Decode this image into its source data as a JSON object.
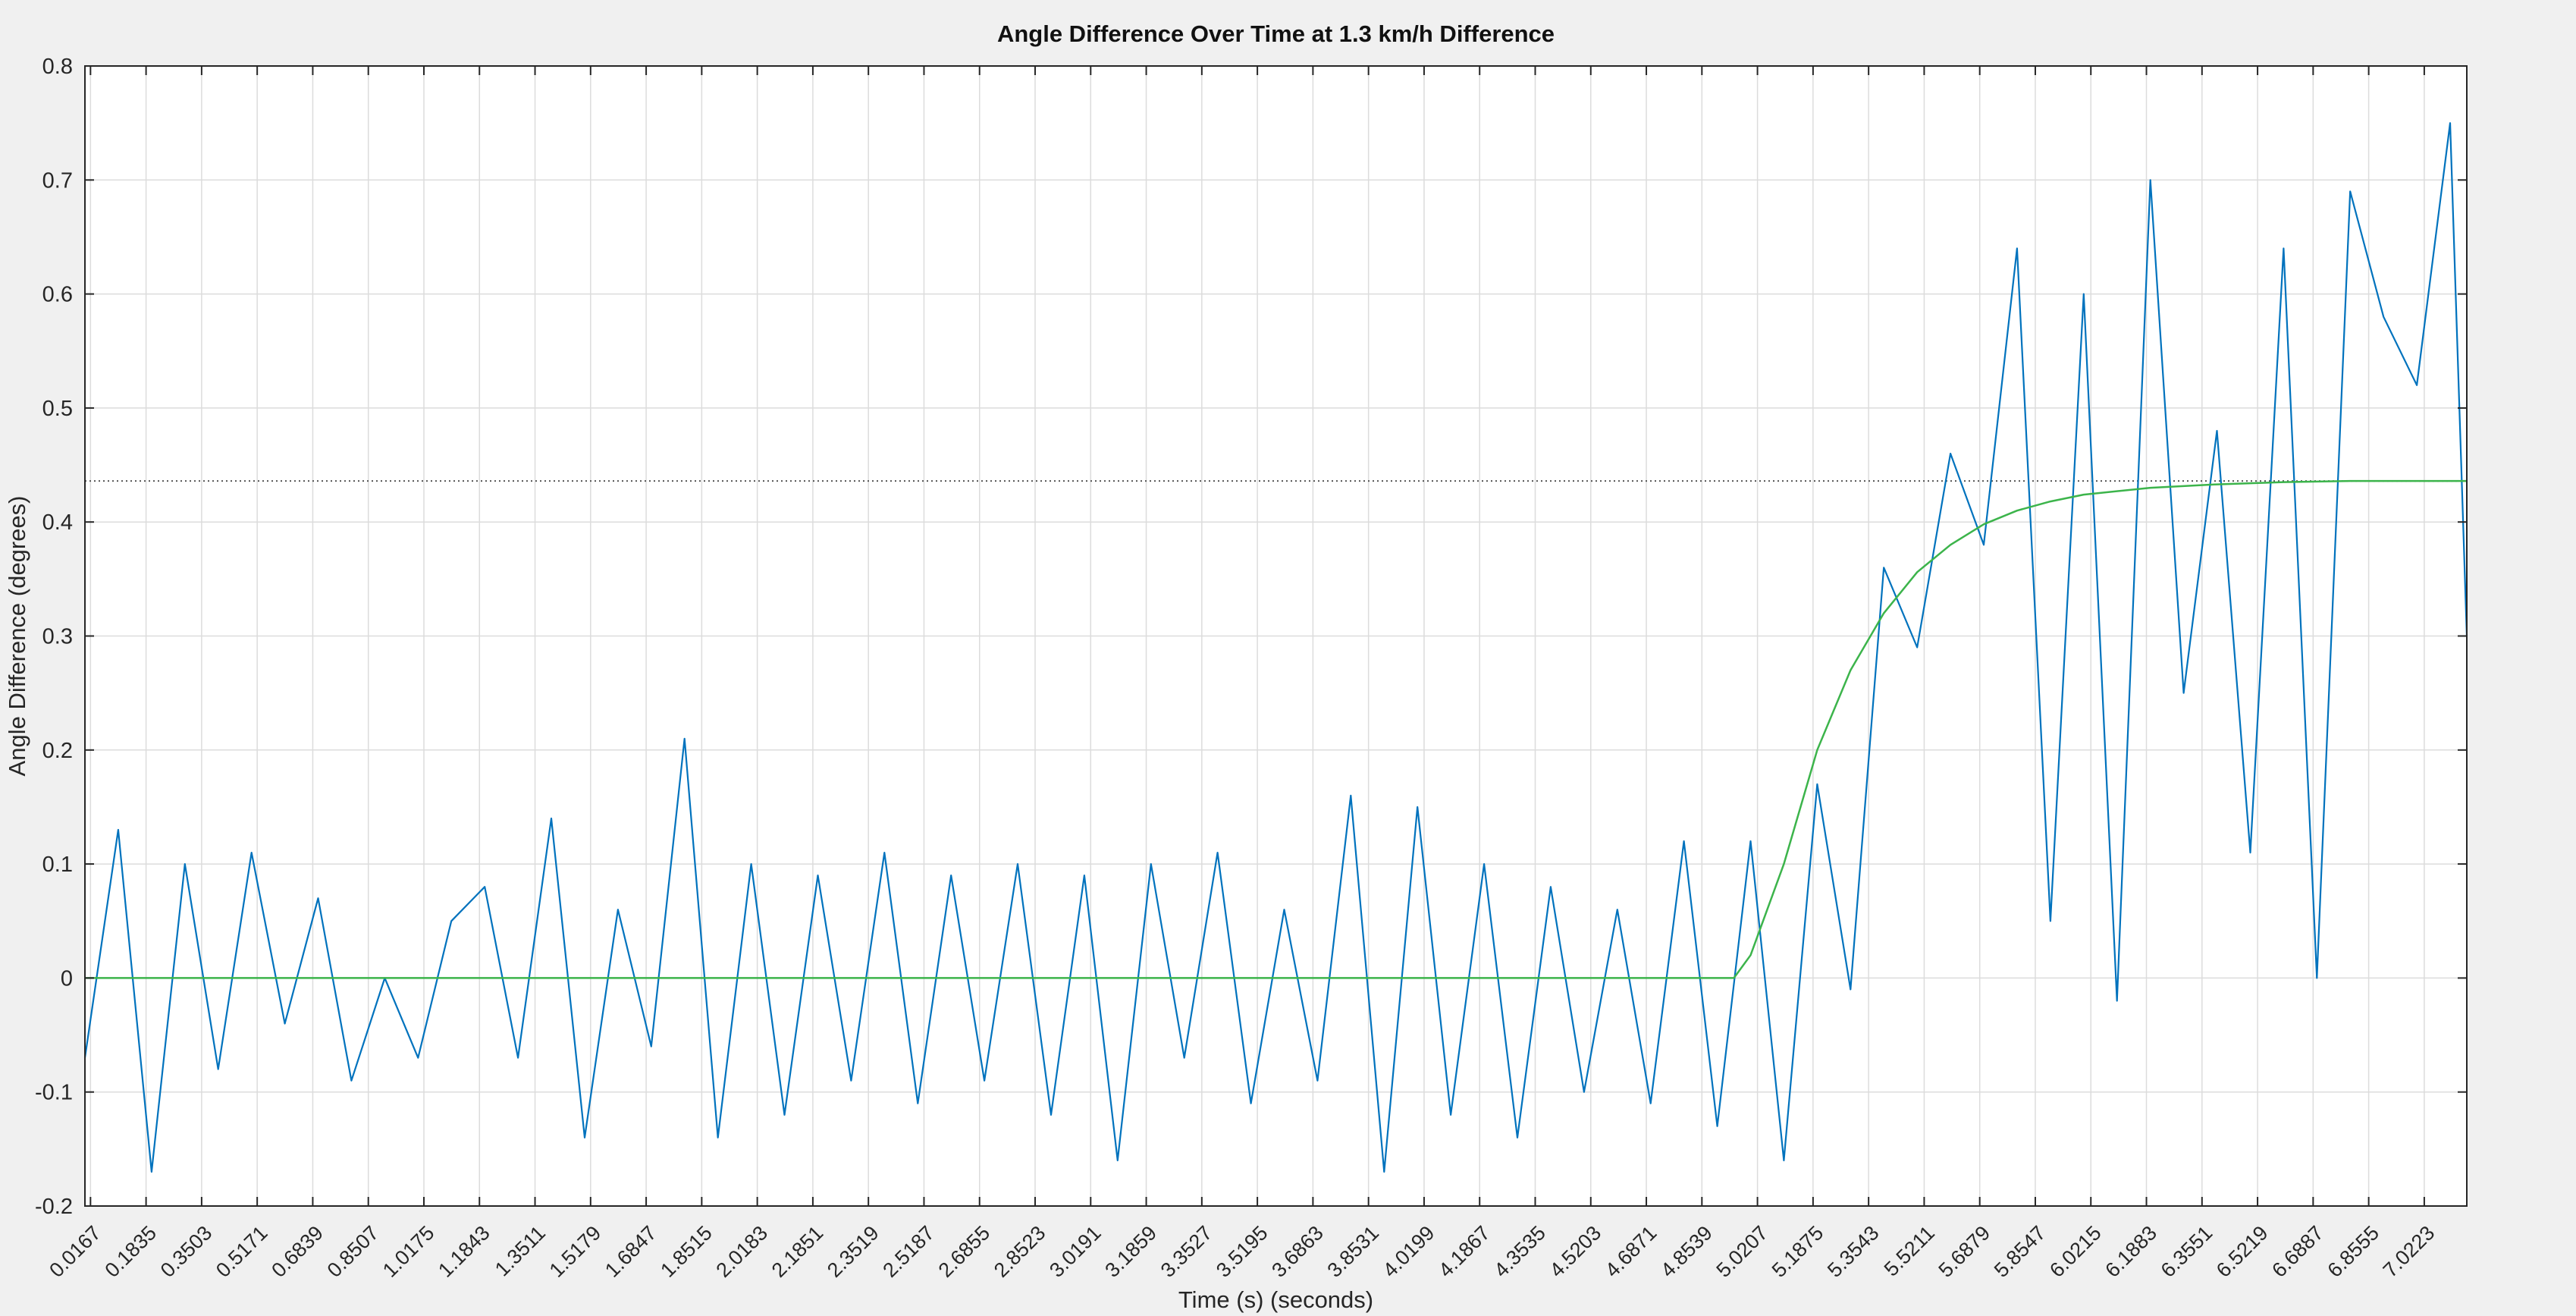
{
  "chart_data": {
    "type": "line",
    "title": "Angle Difference Over Time at 1.3 km/h Difference",
    "xlabel": "Time (s) (seconds)",
    "ylabel": "Angle Difference (degrees)",
    "xlim": [
      0,
      7.15
    ],
    "ylim": [
      -0.2,
      0.8
    ],
    "grid": true,
    "x_ticks": [
      0.0167,
      0.1835,
      0.3503,
      0.5171,
      0.6839,
      0.8507,
      1.0175,
      1.1843,
      1.3511,
      1.5179,
      1.6847,
      1.8515,
      2.0183,
      2.1851,
      2.3519,
      2.5187,
      2.6855,
      2.8523,
      3.0191,
      3.1859,
      3.3527,
      3.5195,
      3.6863,
      3.8531,
      4.0199,
      4.1867,
      4.3535,
      4.5203,
      4.6871,
      4.8539,
      5.0207,
      5.1875,
      5.3543,
      5.5211,
      5.6879,
      5.8547,
      6.0215,
      6.1883,
      6.3551,
      6.5219,
      6.6887,
      6.8555,
      7.0223
    ],
    "x_tick_labels": [
      "0.0167",
      "0.1835",
      "0.3503",
      "0.5171",
      "0.6839",
      "0.8507",
      "1.0175",
      "1.1843",
      "1.3511",
      "1.5179",
      "1.6847",
      "1.8515",
      "2.0183",
      "2.1851",
      "2.3519",
      "2.5187",
      "2.6855",
      "2.8523",
      "3.0191",
      "3.1859",
      "3.3527",
      "3.5195",
      "3.6863",
      "3.8531",
      "4.0199",
      "4.1867",
      "4.3535",
      "4.5203",
      "4.6871",
      "4.8539",
      "5.0207",
      "5.1875",
      "5.3543",
      "5.5211",
      "5.6879",
      "5.8547",
      "6.0215",
      "6.1883",
      "6.3551",
      "6.5219",
      "6.6887",
      "6.8555",
      "7.0223"
    ],
    "y_ticks": [
      -0.2,
      -0.1,
      0,
      0.1,
      0.2,
      0.3,
      0.4,
      0.5,
      0.6,
      0.7,
      0.8
    ],
    "y_tick_labels": [
      "-0.2",
      "-0.1",
      "0",
      "0.1",
      "0.2",
      "0.3",
      "0.4",
      "0.5",
      "0.6",
      "0.7",
      "0.8"
    ],
    "colors": {
      "measured": "#0072bd",
      "fit": "#3cb44b",
      "reference": "#555555",
      "grid": "#dcdcdc",
      "axes_bg": "#ffffff",
      "figure_bg": "#f0f0f0"
    },
    "series": [
      {
        "role": "measured",
        "x": [
          0.0,
          0.1,
          0.2,
          0.3,
          0.4,
          0.5,
          0.6,
          0.7,
          0.8,
          0.9,
          1.0,
          1.1,
          1.2,
          1.3,
          1.4,
          1.5,
          1.6,
          1.7,
          1.8,
          1.9,
          2.0,
          2.1,
          2.2,
          2.3,
          2.4,
          2.5,
          2.6,
          2.7,
          2.8,
          2.9,
          3.0,
          3.1,
          3.2,
          3.3,
          3.4,
          3.5,
          3.6,
          3.7,
          3.8,
          3.9,
          4.0,
          4.1,
          4.2,
          4.3,
          4.4,
          4.5,
          4.6,
          4.7,
          4.8,
          4.9,
          5.0,
          5.1,
          5.2,
          5.3,
          5.4,
          5.5,
          5.6,
          5.7,
          5.8,
          5.9,
          6.0,
          6.1,
          6.2,
          6.3,
          6.4,
          6.5,
          6.6,
          6.7,
          6.8,
          6.9,
          7.0,
          7.1,
          7.15
        ],
        "y": [
          -0.07,
          0.13,
          -0.17,
          0.1,
          -0.08,
          0.11,
          -0.04,
          0.07,
          -0.09,
          0.0,
          -0.07,
          0.05,
          0.08,
          -0.07,
          0.14,
          -0.14,
          0.06,
          -0.06,
          0.21,
          -0.14,
          0.1,
          -0.12,
          0.09,
          -0.09,
          0.11,
          -0.11,
          0.09,
          -0.09,
          0.1,
          -0.12,
          0.09,
          -0.16,
          0.1,
          -0.07,
          0.11,
          -0.11,
          0.06,
          -0.09,
          0.16,
          -0.17,
          0.15,
          -0.12,
          0.1,
          -0.14,
          0.08,
          -0.1,
          0.06,
          -0.11,
          0.12,
          -0.13,
          0.12,
          -0.16,
          0.17,
          -0.01,
          0.36,
          0.29,
          0.46,
          0.38,
          0.64,
          0.05,
          0.6,
          -0.02,
          0.7,
          0.25,
          0.48,
          0.11,
          0.64,
          0.0,
          0.69,
          0.58,
          0.52,
          0.75,
          0.3
        ]
      },
      {
        "role": "fit",
        "x": [
          0.0,
          4.95,
          5.0,
          5.1,
          5.2,
          5.3,
          5.4,
          5.5,
          5.6,
          5.7,
          5.8,
          5.9,
          6.0,
          6.2,
          6.4,
          6.6,
          6.8,
          7.0,
          7.15
        ],
        "y": [
          0,
          0,
          0.02,
          0.1,
          0.2,
          0.27,
          0.32,
          0.356,
          0.38,
          0.398,
          0.41,
          0.418,
          0.424,
          0.43,
          0.433,
          0.435,
          0.436,
          0.436,
          0.436
        ]
      }
    ],
    "reference_line": {
      "y": 0.436,
      "style": "dotted"
    }
  }
}
